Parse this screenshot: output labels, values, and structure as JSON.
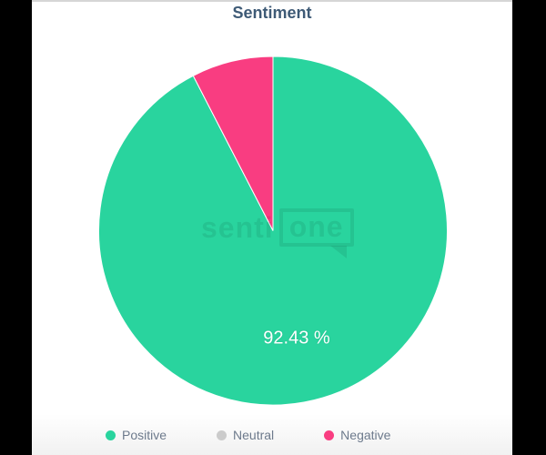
{
  "page": {
    "title": "Sentiment"
  },
  "chart_data": {
    "type": "pie",
    "title": "Sentiment",
    "series": [
      {
        "name": "Positive",
        "value": 92.43,
        "color": "#29d49e"
      },
      {
        "name": "Neutral",
        "value": 0,
        "color": "#cbcbcb"
      },
      {
        "name": "Negative",
        "value": 7.57,
        "color": "#f93d81"
      }
    ],
    "data_label": "92.43 %",
    "start_angle_deg": 0,
    "direction": "clockwise",
    "legend_position": "bottom",
    "slice_border_color": "#ffffff"
  },
  "legend": {
    "items": [
      {
        "label": "Positive",
        "color": "#29d49e"
      },
      {
        "label": "Neutral",
        "color": "#cbcbcb"
      },
      {
        "label": "Negative",
        "color": "#f93d81"
      }
    ]
  },
  "watermark": {
    "text_plain": "senti",
    "text_boxed": "one"
  },
  "colors": {
    "title_text": "#3e5a76",
    "legend_text": "#6d7a8c",
    "data_label_text": "#ffffff",
    "letterbox": "#000000"
  }
}
